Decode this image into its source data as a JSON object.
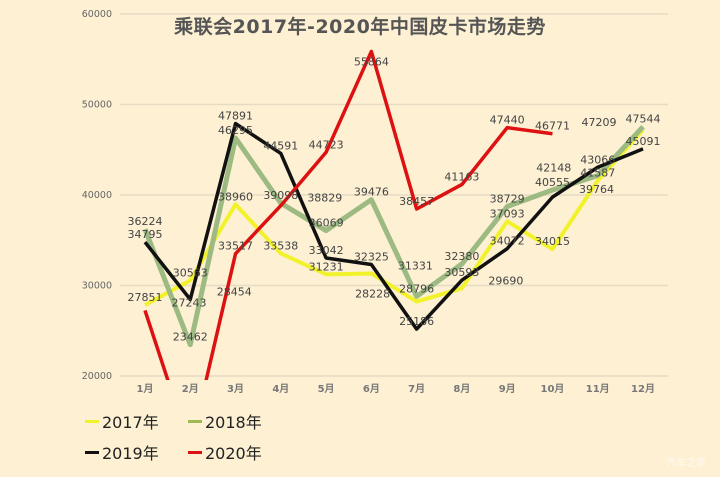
{
  "chart_data": {
    "type": "line",
    "title": "乘联会2017年-2020年中国皮卡市场走势",
    "categories": [
      "1月",
      "2月",
      "3月",
      "4月",
      "5月",
      "6月",
      "7月",
      "8月",
      "9月",
      "10月",
      "11月",
      "12月"
    ],
    "y_ticks": [
      "20000",
      "30000",
      "40000",
      "50000",
      "60000"
    ],
    "ylim": [
      20000,
      60000
    ],
    "grid": true,
    "legend_placement": "bottom-left",
    "series": [
      {
        "name": "2017年",
        "color": "#f2f22a",
        "values": [
          27851,
          30563,
          38960,
          33538,
          31231,
          31331,
          28228,
          29690,
          37093,
          34015,
          41587,
          47209
        ],
        "labels": [
          "27851",
          "30563",
          "38960",
          "33538",
          "31231",
          "31331",
          "28228",
          "29690",
          "37093",
          "34015",
          "41587",
          "47209"
        ]
      },
      {
        "name": "2018年",
        "color": "#9cba82",
        "values": [
          36224,
          23462,
          46295,
          39098,
          36069,
          39476,
          28796,
          32380,
          38729,
          40555,
          42148,
          47544
        ],
        "labels": [
          "36224",
          "23462",
          "46295",
          "39098",
          "36069",
          "39476",
          "28796",
          "32380",
          "38729",
          "40555",
          "42148",
          "47544"
        ]
      },
      {
        "name": "2019年",
        "color": "#111111",
        "values": [
          34795,
          28454,
          47891,
          44591,
          33042,
          32325,
          25186,
          30593,
          34072,
          39764,
          43066,
          45091
        ],
        "labels": [
          "34795",
          "28454",
          "47891",
          "44591",
          "33042",
          "32325",
          "25186",
          "30593",
          "34072",
          "39764",
          "43066",
          "45091"
        ]
      },
      {
        "name": "2020年",
        "color": "#dd1111",
        "values": [
          27243,
          null,
          33517,
          38829,
          44723,
          55864,
          38457,
          41163,
          47440,
          46771,
          null,
          null
        ],
        "labels": [
          "27243",
          "",
          "33517",
          "38829",
          "44723",
          "55864",
          "38457",
          "41163",
          "47440",
          "46771",
          "",
          ""
        ]
      }
    ]
  },
  "watermark": "汽车之家"
}
